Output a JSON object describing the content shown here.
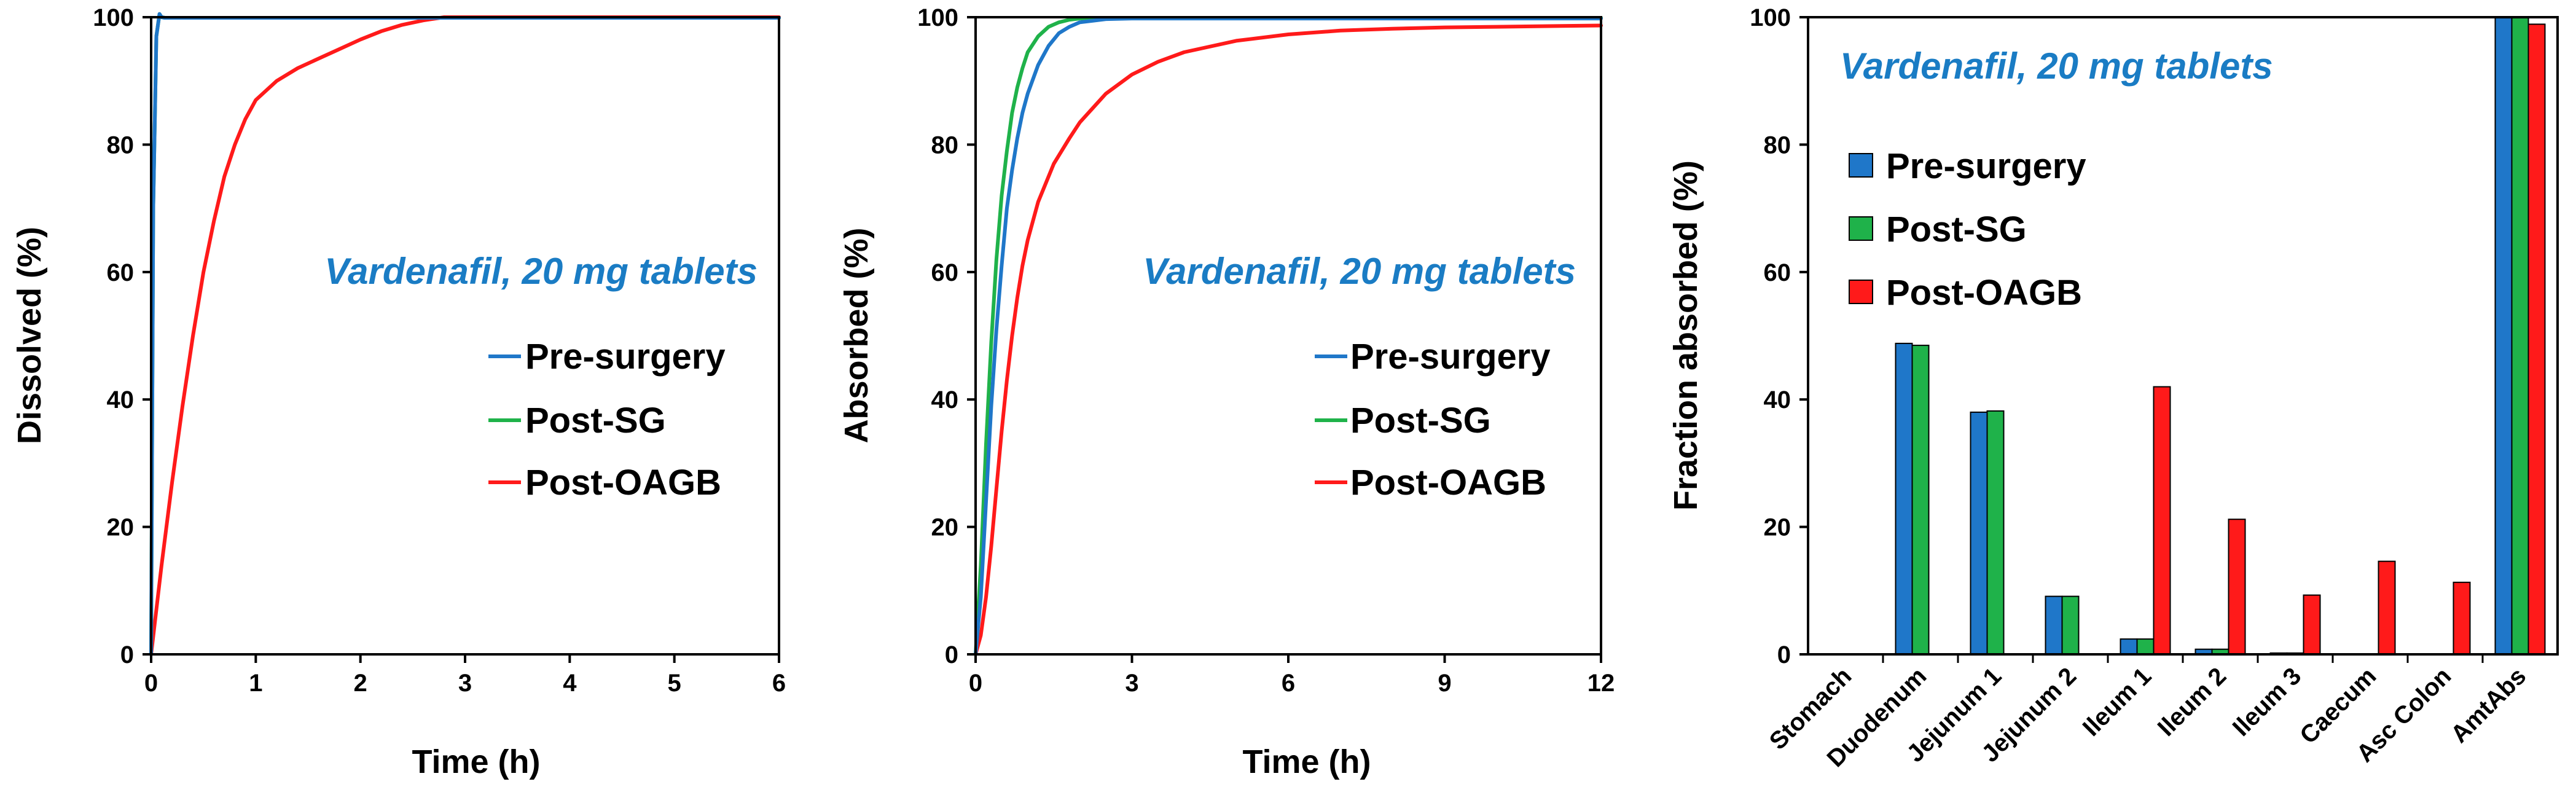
{
  "colors": {
    "pre_surgery": "#1f77c9",
    "post_sg": "#1fb24a",
    "post_oagb": "#ff1a1a",
    "annotation": "#1a7cc4"
  },
  "chart_data": [
    {
      "type": "line",
      "annotation": "Vardenafil, 20 mg tablets",
      "xlabel": "Time (h)",
      "ylabel": "Dissolved (%)",
      "xlim": [
        0,
        6
      ],
      "ylim": [
        0,
        100
      ],
      "xticks": [
        0,
        1,
        2,
        3,
        4,
        5,
        6
      ],
      "yticks": [
        0,
        20,
        40,
        60,
        80,
        100
      ],
      "grid": false,
      "legend": "center-right",
      "series": [
        {
          "name": "Pre-surgery",
          "color": "#1f77c9",
          "x": [
            0,
            0.02,
            0.05,
            0.08,
            0.1,
            0.13,
            0.2,
            1,
            6
          ],
          "y": [
            0,
            70,
            97,
            100.5,
            100,
            99.9,
            99.9,
            99.9,
            99.9
          ]
        },
        {
          "name": "Post-SG",
          "color": "#1fb24a",
          "x": [
            0,
            0.02,
            0.05,
            0.08,
            0.1,
            0.13,
            0.2,
            1,
            6
          ],
          "y": [
            0,
            70,
            97,
            100.5,
            100,
            99.9,
            99.9,
            99.9,
            99.9
          ]
        },
        {
          "name": "Post-OAGB",
          "color": "#ff1a1a",
          "x": [
            0,
            0.1,
            0.2,
            0.3,
            0.4,
            0.5,
            0.6,
            0.7,
            0.8,
            0.9,
            1.0,
            1.2,
            1.4,
            1.6,
            1.8,
            2.0,
            2.2,
            2.4,
            2.6,
            2.8,
            3.0,
            6
          ],
          "y": [
            0,
            14,
            27,
            39,
            50,
            60,
            68,
            75,
            80,
            84,
            87,
            90,
            92,
            93.5,
            95,
            96.5,
            97.8,
            98.8,
            99.5,
            100,
            100,
            100
          ]
        }
      ]
    },
    {
      "type": "line",
      "annotation": "Vardenafil, 20 mg tablets",
      "xlabel": "Time (h)",
      "ylabel": "Absorbed (%)",
      "xlim": [
        0,
        12
      ],
      "ylim": [
        0,
        100
      ],
      "xticks": [
        0,
        3,
        6,
        9,
        12
      ],
      "yticks": [
        0,
        20,
        40,
        60,
        80,
        100
      ],
      "grid": false,
      "legend": "center-right",
      "series": [
        {
          "name": "Pre-surgery",
          "color": "#1f77c9",
          "x": [
            0,
            0.1,
            0.2,
            0.3,
            0.4,
            0.5,
            0.6,
            0.7,
            0.8,
            0.9,
            1.0,
            1.2,
            1.4,
            1.6,
            1.8,
            2.0,
            2.5,
            3,
            4,
            6,
            12
          ],
          "y": [
            0,
            9,
            24,
            39,
            51,
            61,
            70,
            76,
            81,
            85,
            88,
            92.5,
            95.5,
            97.5,
            98.5,
            99.2,
            99.7,
            99.8,
            99.8,
            99.8,
            99.8
          ]
        },
        {
          "name": "Post-SG",
          "color": "#1fb24a",
          "x": [
            0,
            0.1,
            0.2,
            0.3,
            0.4,
            0.5,
            0.6,
            0.7,
            0.8,
            0.9,
            1.0,
            1.2,
            1.4,
            1.6,
            1.8,
            2.0,
            2.5,
            3,
            4,
            6,
            12
          ],
          "y": [
            0,
            14,
            33,
            49,
            62,
            72,
            79,
            85,
            89,
            92,
            94.5,
            97,
            98.5,
            99.2,
            99.6,
            99.8,
            99.9,
            99.9,
            99.9,
            99.9,
            99.9
          ]
        },
        {
          "name": "Post-OAGB",
          "color": "#ff1a1a",
          "x": [
            0,
            0.1,
            0.2,
            0.3,
            0.4,
            0.5,
            0.6,
            0.7,
            0.8,
            0.9,
            1.0,
            1.2,
            1.5,
            1.8,
            2.0,
            2.5,
            3,
            3.5,
            4,
            5,
            6,
            7,
            8,
            9,
            10,
            11,
            12
          ],
          "y": [
            0,
            3,
            9,
            17,
            26,
            35,
            43,
            50,
            56,
            61,
            65,
            71,
            77,
            81,
            83.5,
            88,
            91,
            93,
            94.5,
            96.3,
            97.3,
            97.9,
            98.2,
            98.4,
            98.5,
            98.6,
            98.7
          ]
        }
      ]
    },
    {
      "type": "bar",
      "annotation": "Vardenafil, 20 mg tablets",
      "xlabel": "",
      "ylabel": "Fraction absorbed (%)",
      "ylim": [
        0,
        100
      ],
      "yticks": [
        0,
        20,
        40,
        60,
        80,
        100
      ],
      "grid": false,
      "legend": "top-left",
      "categories": [
        "Stomach",
        "Duodenum",
        "Jejunum 1",
        "Jejunum 2",
        "Ileum 1",
        "Ileum 2",
        "Ileum 3",
        "Caecum",
        "Asc Colon",
        "AmtAbs"
      ],
      "series": [
        {
          "name": "Pre-surgery",
          "color": "#1f77c9",
          "values": [
            0,
            48.8,
            38.0,
            9.1,
            2.4,
            0.8,
            0.2,
            0.1,
            0,
            99.9
          ]
        },
        {
          "name": "Post-SG",
          "color": "#1fb24a",
          "values": [
            0,
            48.5,
            38.2,
            9.1,
            2.4,
            0.8,
            0.2,
            0.1,
            0,
            99.9
          ]
        },
        {
          "name": "Post-OAGB",
          "color": "#ff1a1a",
          "values": [
            0,
            0,
            0,
            0,
            42.0,
            21.2,
            9.3,
            14.6,
            11.3,
            98.9
          ]
        }
      ]
    }
  ]
}
